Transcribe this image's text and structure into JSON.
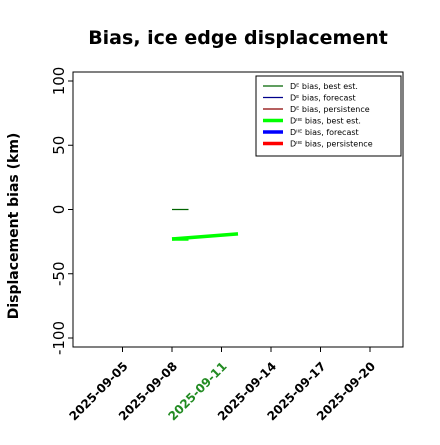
{
  "chart_data": {
    "type": "line",
    "title": "Bias, ice edge displacement",
    "xlabel": "",
    "ylabel": "Displacement bias (km)",
    "xlim": [
      "2025-09-02",
      "2025-09-22"
    ],
    "ylim": [
      -107,
      107
    ],
    "yticks": [
      100,
      50,
      0,
      -50,
      -100
    ],
    "xticks": [
      {
        "label": "2025-09-05",
        "date": "2025-09-05",
        "color": "#000000"
      },
      {
        "label": "2025-09-08",
        "date": "2025-09-08",
        "color": "#000000"
      },
      {
        "label": "2025-09-11",
        "date": "2025-09-11",
        "color": "#228b22"
      },
      {
        "label": "2025-09-14",
        "date": "2025-09-14",
        "color": "#000000"
      },
      {
        "label": "2025-09-17",
        "date": "2025-09-17",
        "color": "#000000"
      },
      {
        "label": "2025-09-20",
        "date": "2025-09-20",
        "color": "#000000"
      }
    ],
    "legend": {
      "placement": "top-right",
      "entries": [
        {
          "label": "Dᴱ bias, best est.",
          "color": "#006400",
          "width": "thin"
        },
        {
          "label": "Dᴱ bias, forecast",
          "color": "#00008b",
          "width": "thin"
        },
        {
          "label": "Dᴱ bias, persistence",
          "color": "#8b0000",
          "width": "thin"
        },
        {
          "label": "Dᴵᴵᴱ bias, best est.",
          "color": "#00ff00",
          "width": "thick"
        },
        {
          "label": "Dᴵᴵᴱ bias, forecast",
          "color": "#0000ff",
          "width": "thick"
        },
        {
          "label": "Dᴵᴵᴱ bias, persistence",
          "color": "#ff0000",
          "width": "thick"
        }
      ]
    },
    "series": [
      {
        "legend_index": 3,
        "points": [
          {
            "x": "2025-09-08",
            "y": -23
          },
          {
            "x": "2025-09-09",
            "y": -23
          }
        ]
      },
      {
        "legend_index": 3,
        "points": [
          {
            "x": "2025-09-08",
            "y": -23
          },
          {
            "x": "2025-09-12",
            "y": -19
          }
        ]
      },
      {
        "legend_index": 0,
        "points": [
          {
            "x": "2025-09-08",
            "y": 0
          },
          {
            "x": "2025-09-09",
            "y": 0
          }
        ]
      }
    ],
    "grid": false
  }
}
